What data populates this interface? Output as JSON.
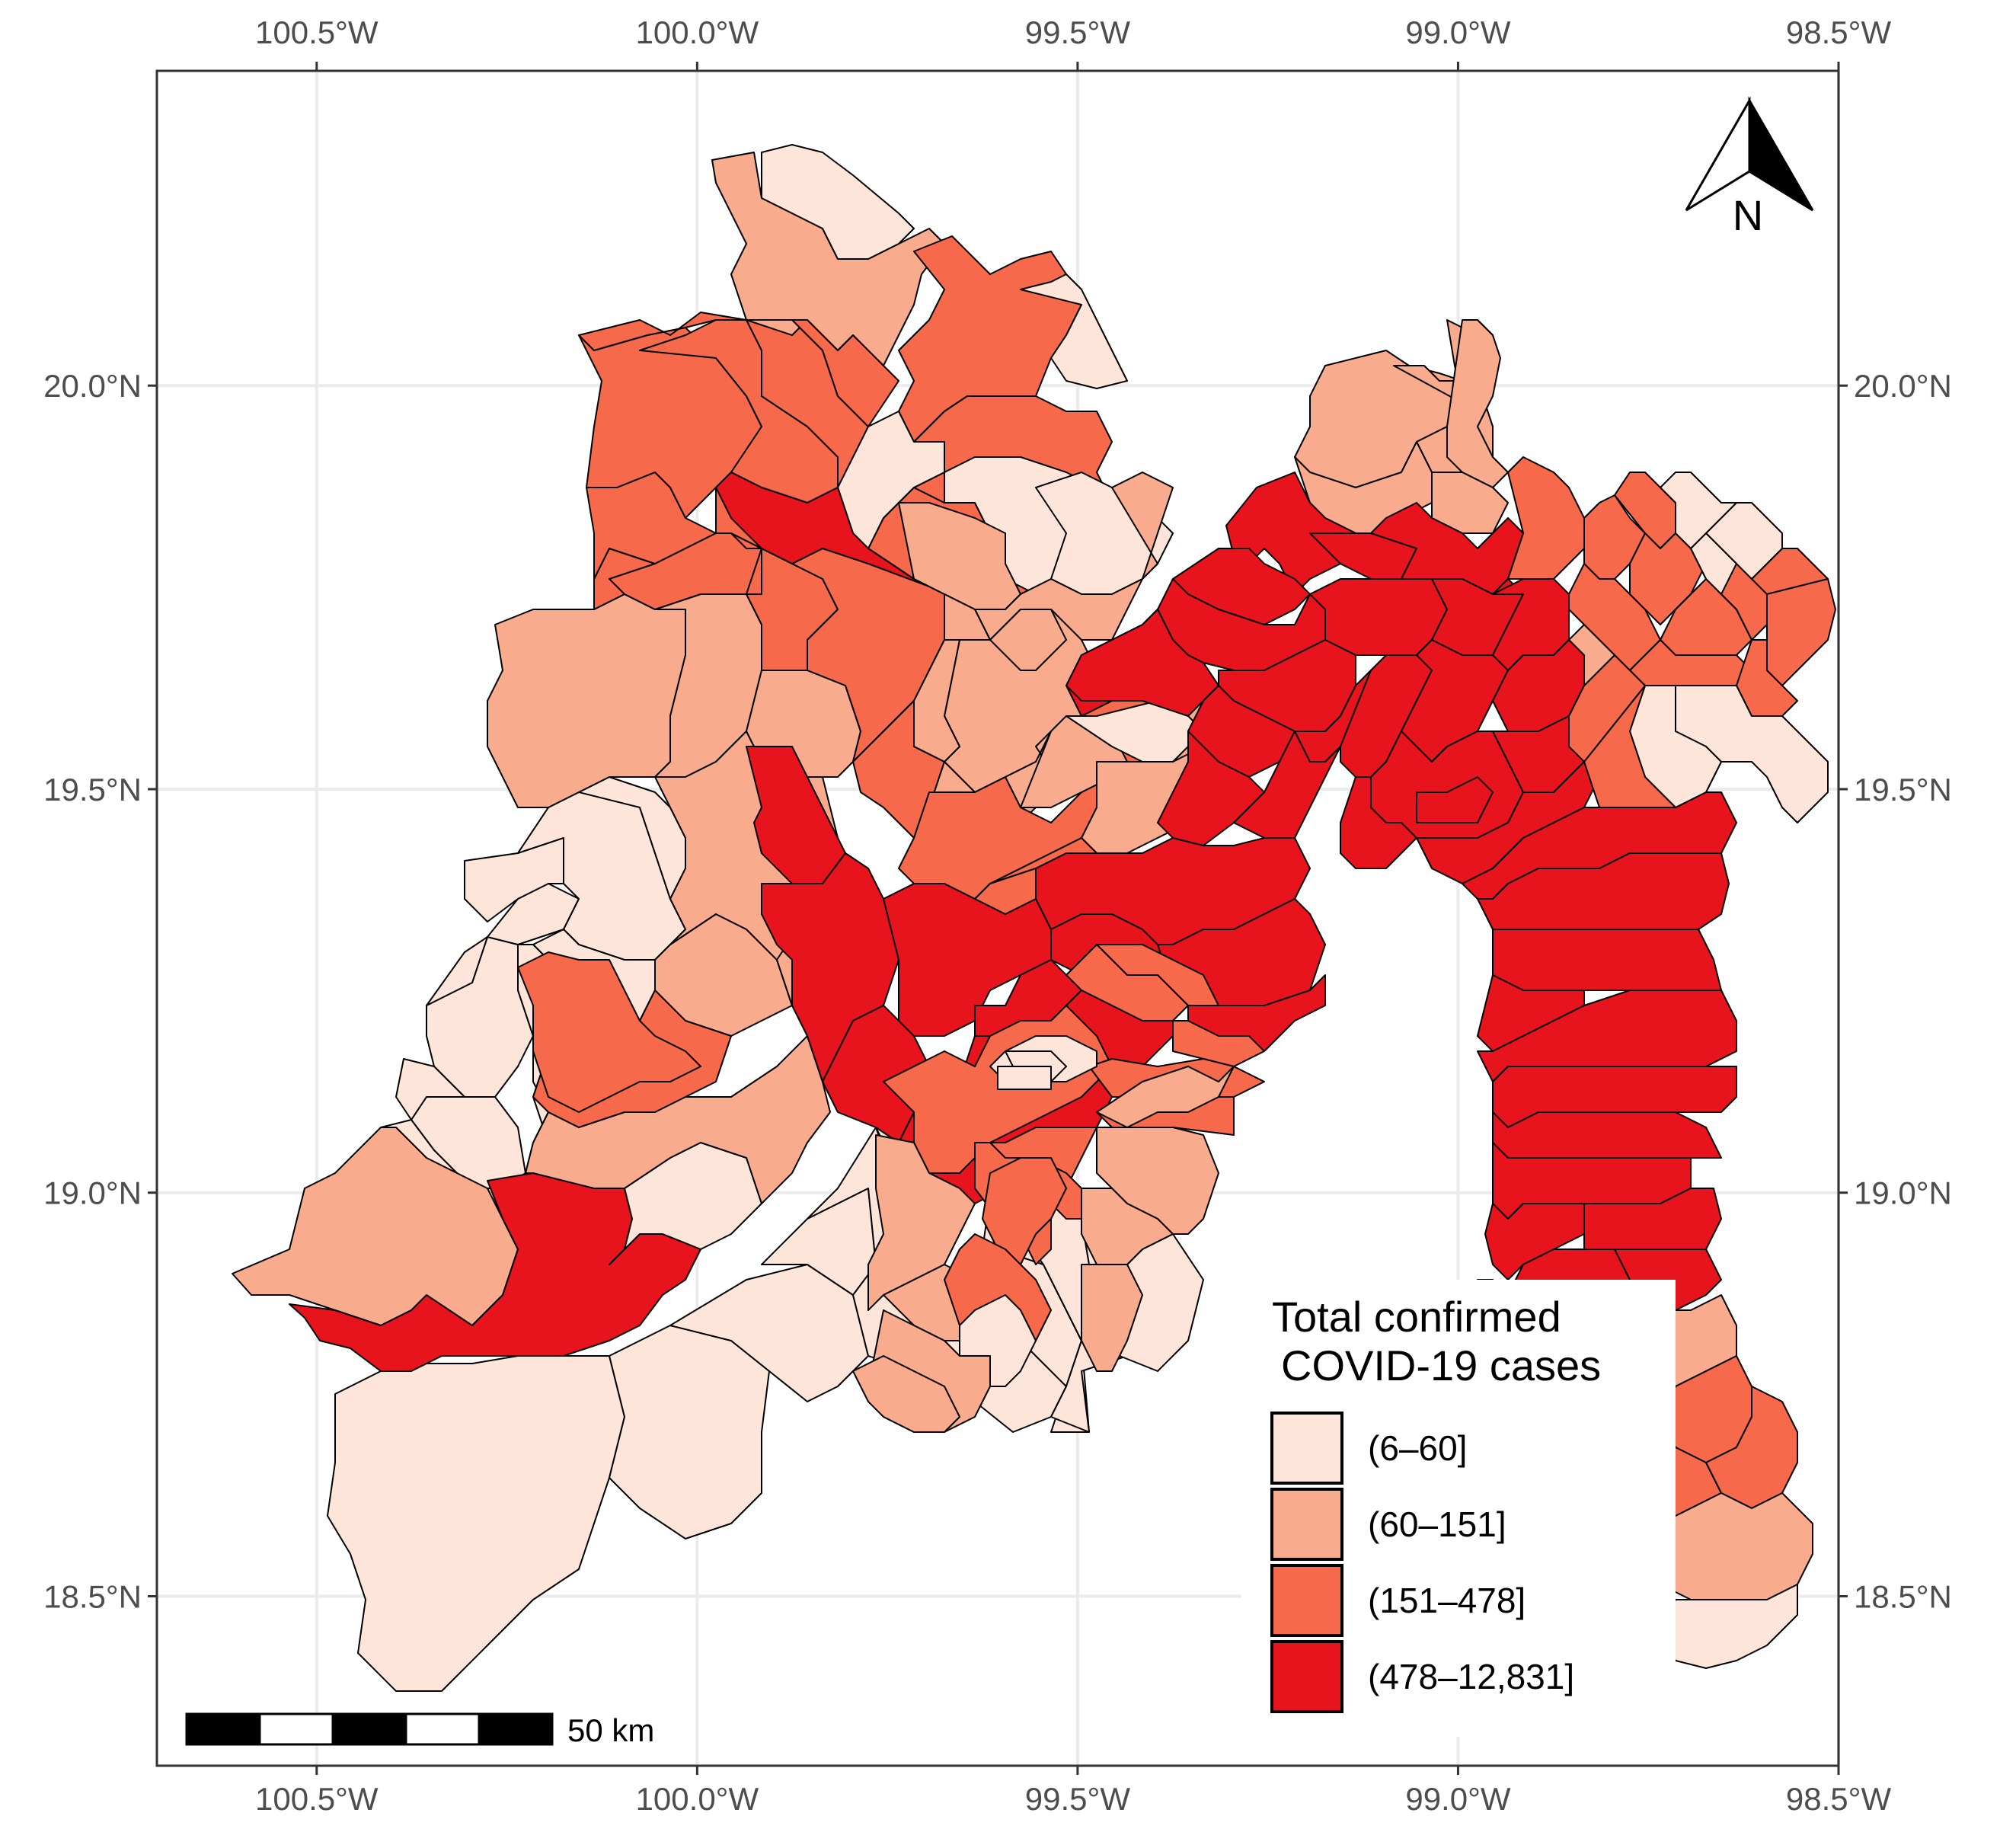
{
  "colors": {
    "class1": "#fde5d9",
    "class2": "#f9ab8e",
    "class3": "#f7694b",
    "class4": "#e8141d",
    "grid": "#ebebeb",
    "frame": "#333333"
  },
  "axes": {
    "x_ticks": [
      "100.5°W",
      "100.0°W",
      "99.5°W",
      "99.0°W",
      "98.5°W"
    ],
    "x_values": [
      -100.5,
      -100.0,
      -99.5,
      -99.0,
      -98.5
    ],
    "y_ticks": [
      "20.0°N",
      "19.5°N",
      "19.0°N",
      "18.5°N"
    ],
    "y_values": [
      20.0,
      19.5,
      19.0,
      18.5
    ],
    "lon_range": [
      -100.71,
      -98.5
    ],
    "lat_range": [
      18.29,
      20.39
    ],
    "grid": true
  },
  "legend": {
    "title_line1": "Total confirmed",
    "title_line2": "COVID-19 cases",
    "placement": "bottom-right",
    "items": [
      {
        "label": "(6–60]",
        "color": "#fde5d9"
      },
      {
        "label": "(60–151]",
        "color": "#f9ab8e"
      },
      {
        "label": "(151–478]",
        "color": "#f7694b"
      },
      {
        "label": "(478–12,831]",
        "color": "#e8141d"
      }
    ]
  },
  "scale_bar": {
    "label": "50 km",
    "placement": "bottom-left"
  },
  "north_arrow": {
    "label": "N",
    "placement": "top-right"
  }
}
